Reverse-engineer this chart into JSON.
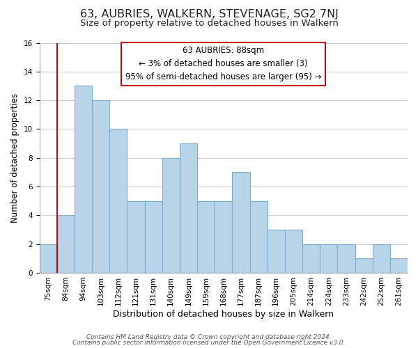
{
  "title": "63, AUBRIES, WALKERN, STEVENAGE, SG2 7NJ",
  "subtitle": "Size of property relative to detached houses in Walkern",
  "xlabel": "Distribution of detached houses by size in Walkern",
  "ylabel": "Number of detached properties",
  "footer_lines": [
    "Contains HM Land Registry data © Crown copyright and database right 2024.",
    "Contains public sector information licensed under the Open Government Licence v3.0."
  ],
  "bins": [
    "75sqm",
    "84sqm",
    "94sqm",
    "103sqm",
    "112sqm",
    "121sqm",
    "131sqm",
    "140sqm",
    "149sqm",
    "159sqm",
    "168sqm",
    "177sqm",
    "187sqm",
    "196sqm",
    "205sqm",
    "214sqm",
    "224sqm",
    "233sqm",
    "242sqm",
    "252sqm",
    "261sqm"
  ],
  "values": [
    2,
    4,
    13,
    12,
    10,
    5,
    5,
    8,
    9,
    5,
    5,
    7,
    5,
    3,
    3,
    2,
    2,
    2,
    1,
    2,
    1
  ],
  "bar_color": "#b8d4e8",
  "bar_edge_color": "#7badd1",
  "vline_x_index": 1,
  "vline_color": "#cc0000",
  "annotation_box_text": "63 AUBRIES: 88sqm\n← 3% of detached houses are smaller (3)\n95% of semi-detached houses are larger (95) →",
  "ylim": [
    0,
    16
  ],
  "yticks": [
    0,
    2,
    4,
    6,
    8,
    10,
    12,
    14,
    16
  ],
  "background_color": "#ffffff",
  "grid_color": "#cccccc",
  "title_fontsize": 11.5,
  "subtitle_fontsize": 9.5,
  "xlabel_fontsize": 9,
  "ylabel_fontsize": 8.5,
  "tick_fontsize": 7.5,
  "annotation_fontsize": 8.5,
  "footer_fontsize": 6.5
}
